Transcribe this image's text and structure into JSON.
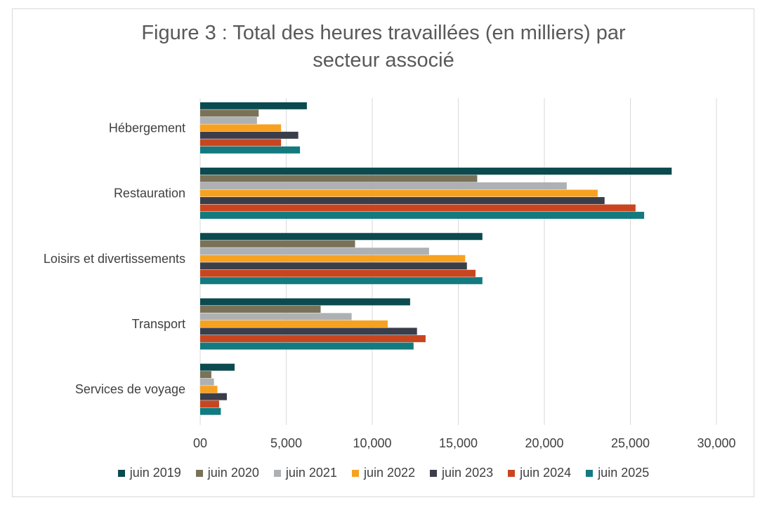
{
  "title": {
    "line1": "Figure 3 : Total des heures travaillées (en milliers) par",
    "line2": "secteur associé"
  },
  "chart_data": {
    "type": "bar",
    "orientation": "horizontal",
    "title": "Figure 3 : Total des heures travaillées (en milliers) par secteur associé",
    "categories": [
      "Hébergement",
      "Restauration",
      "Loisirs et divertissements",
      "Transport",
      "Services de voyage"
    ],
    "series": [
      {
        "name": "juin 2019",
        "color": "#0b4a4f",
        "values": [
          6200,
          27400,
          16400,
          12200,
          2000
        ]
      },
      {
        "name": "juin 2020",
        "color": "#7a7258",
        "values": [
          3400,
          16100,
          9000,
          7000,
          650
        ]
      },
      {
        "name": "juin 2021",
        "color": "#adb1b4",
        "values": [
          3300,
          21300,
          13300,
          8800,
          800
        ]
      },
      {
        "name": "juin 2022",
        "color": "#f7a121",
        "values": [
          4700,
          23100,
          15400,
          10900,
          1000
        ]
      },
      {
        "name": "juin 2023",
        "color": "#3a3e4a",
        "values": [
          5700,
          23500,
          15500,
          12600,
          1550
        ]
      },
      {
        "name": "juin 2024",
        "color": "#c8461f",
        "values": [
          4700,
          25300,
          16000,
          13100,
          1100
        ]
      },
      {
        "name": "juin 2025",
        "color": "#137a7f",
        "values": [
          5800,
          25800,
          16400,
          12400,
          1200
        ]
      }
    ],
    "xlim": [
      0,
      30000
    ],
    "xticks": [
      0,
      5000,
      10000,
      15000,
      20000,
      25000,
      30000
    ],
    "xtick_labels": [
      "00",
      "5,000",
      "10,000",
      "15,000",
      "20,000",
      "25,000",
      "30,000"
    ],
    "grid": "vertical",
    "legend": "bottom"
  }
}
